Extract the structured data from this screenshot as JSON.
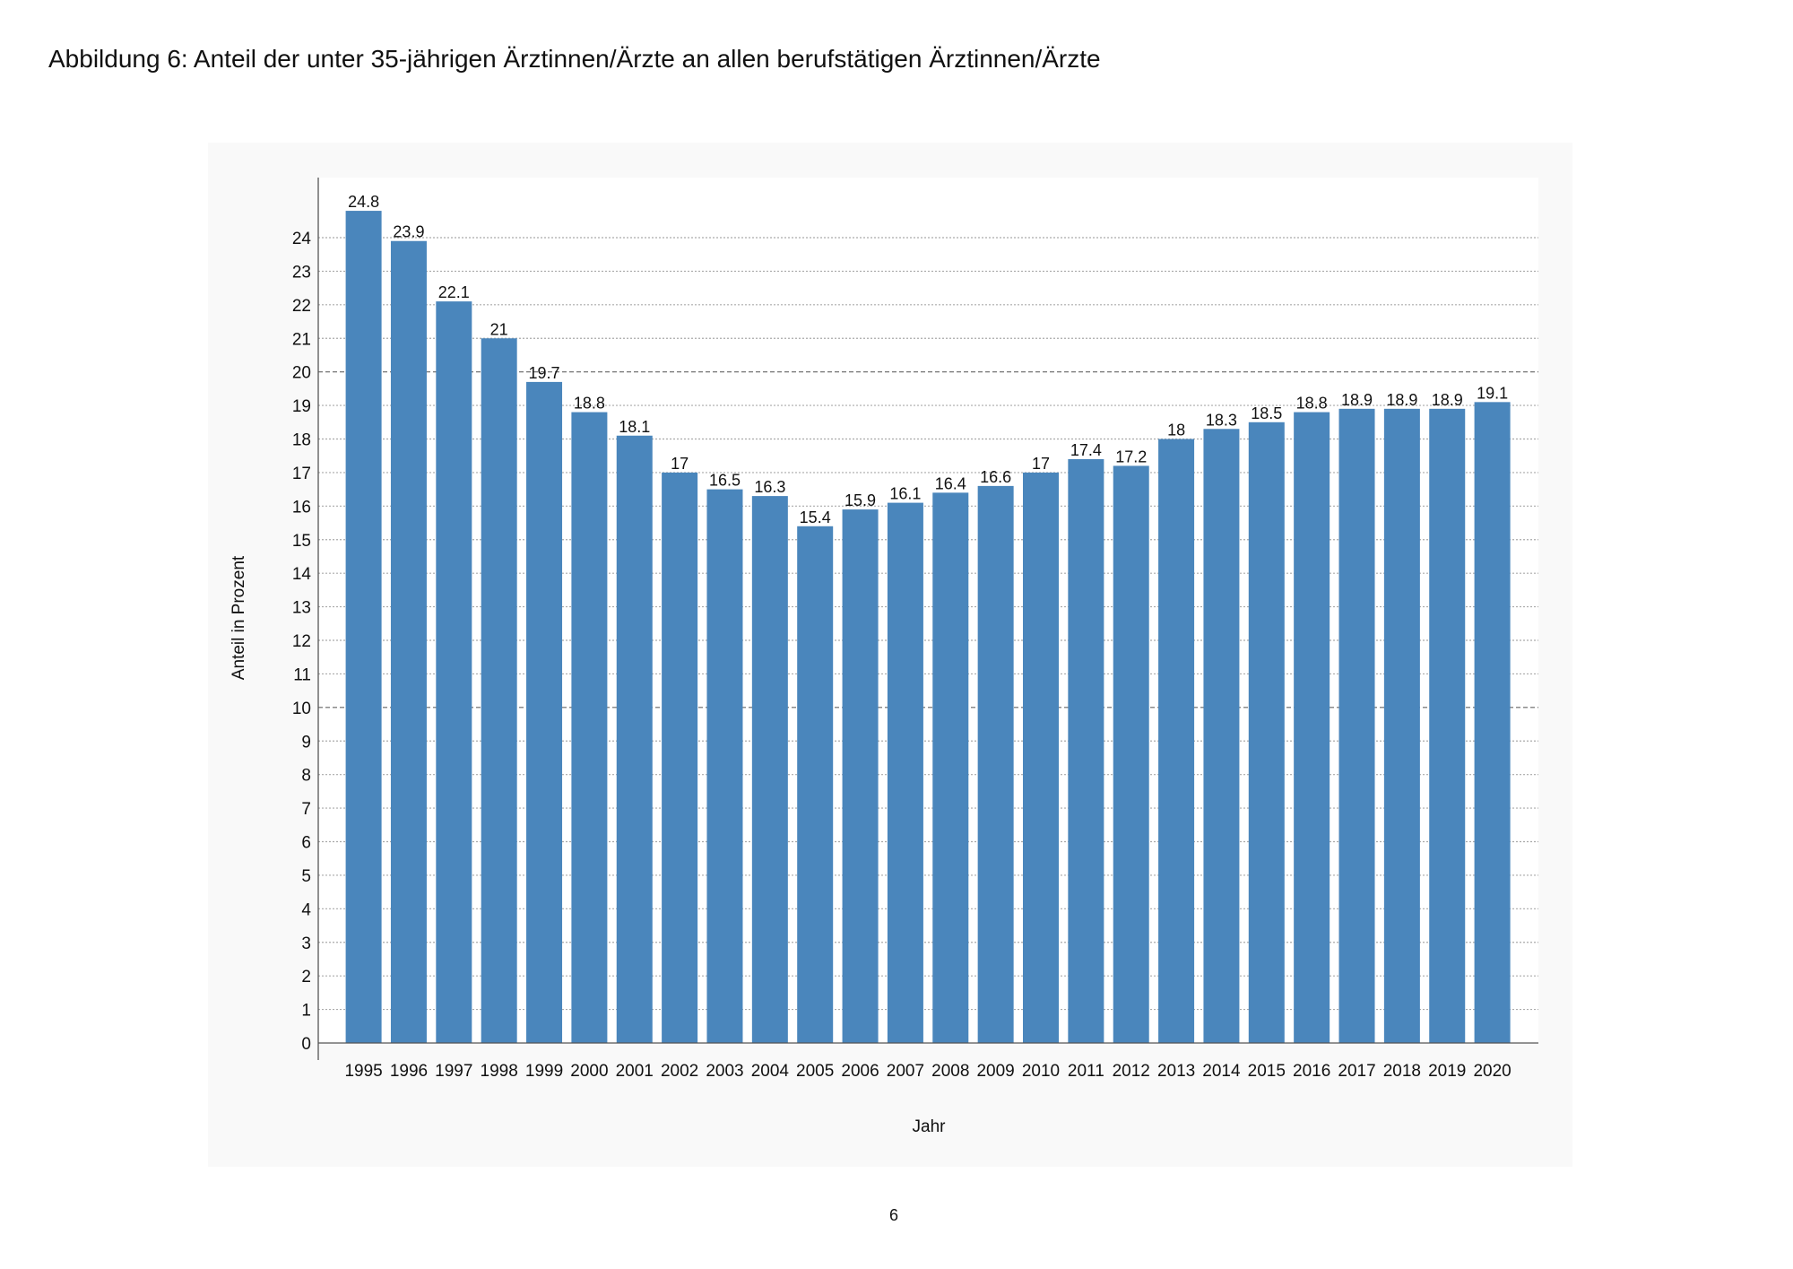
{
  "page": {
    "title": "Abbildung 6: Anteil der unter 35-jährigen Ärztinnen/Ärzte an allen berufstätigen Ärztinnen/Ärzte",
    "page_number": "6"
  },
  "colors": {
    "bar": "#4a86bc",
    "panel": "#f9f9f9",
    "grid": "#999999"
  },
  "chart_data": {
    "type": "bar",
    "title": "Abbildung 6: Anteil der unter 35-jährigen Ärztinnen/Ärzte an allen berufstätigen Ärztinnen/Ärzte",
    "xlabel": "Jahr",
    "ylabel": "Anteil in Prozent",
    "ylim": [
      0,
      24
    ],
    "yticks": [
      0,
      1,
      2,
      3,
      4,
      5,
      6,
      7,
      8,
      9,
      10,
      11,
      12,
      13,
      14,
      15,
      16,
      17,
      18,
      19,
      20,
      21,
      22,
      23,
      24
    ],
    "grid": true,
    "categories": [
      "1995",
      "1996",
      "1997",
      "1998",
      "1999",
      "2000",
      "2001",
      "2002",
      "2003",
      "2004",
      "2005",
      "2006",
      "2007",
      "2008",
      "2009",
      "2010",
      "2011",
      "2012",
      "2013",
      "2014",
      "2015",
      "2016",
      "2017",
      "2018",
      "2019",
      "2020"
    ],
    "values": [
      24.8,
      23.9,
      22.1,
      21,
      19.7,
      18.8,
      18.1,
      17,
      16.5,
      16.3,
      15.4,
      15.9,
      16.1,
      16.4,
      16.6,
      17,
      17.4,
      17.2,
      18,
      18.3,
      18.5,
      18.8,
      18.9,
      18.9,
      18.9,
      19.1
    ]
  }
}
